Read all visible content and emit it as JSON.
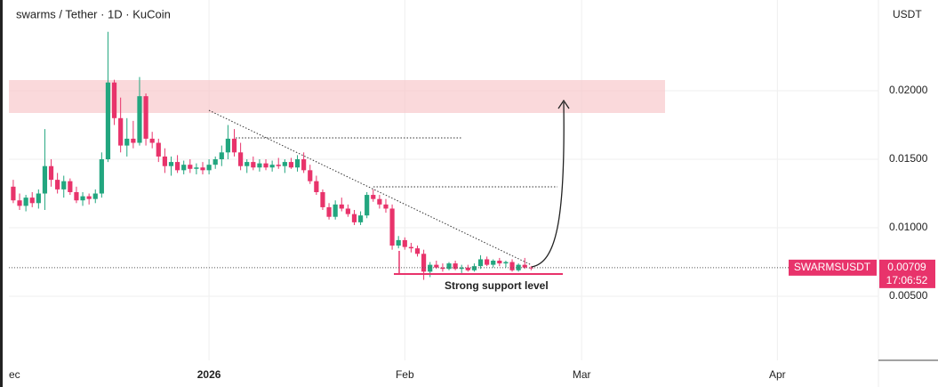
{
  "chart_data": {
    "type": "candlestick",
    "title": "swarms / Tether · 1D · KuCoin",
    "y_axis_label": "USDT",
    "symbol_label": "SWARMSUSDT",
    "last_price": 0.00709,
    "countdown": "17:06:52",
    "annotation": "Strong support level",
    "up_color": "#22a67f",
    "down_color": "#e8336b",
    "grid": true,
    "ylim": [
      0.00033,
      0.02662
    ],
    "yticks": [
      {
        "value": 0.005,
        "label": "0.00500"
      },
      {
        "value": 0.01,
        "label": "0.01000"
      },
      {
        "value": 0.015,
        "label": "0.01500"
      },
      {
        "value": 0.02,
        "label": "0.02000"
      }
    ],
    "xlim": [
      -2.1,
      137
    ],
    "xticks": [
      {
        "value": 0,
        "label": "ec"
      },
      {
        "value": 31,
        "label": "2026"
      },
      {
        "value": 62,
        "label": "Feb"
      },
      {
        "value": 90,
        "label": "Mar"
      },
      {
        "value": 121,
        "label": "Apr"
      }
    ],
    "open": [
      0.013,
      0.012,
      0.0116,
      0.0122,
      0.0118,
      0.0125,
      0.0145,
      0.0135,
      0.0128,
      0.0134,
      0.0126,
      0.012,
      0.0123,
      0.0121,
      0.0125,
      0.015,
      0.0206,
      0.018,
      0.016,
      0.0165,
      0.0162,
      0.0196,
      0.0165,
      0.0162,
      0.0152,
      0.0145,
      0.0148,
      0.0142,
      0.0146,
      0.0143,
      0.0144,
      0.0142,
      0.0146,
      0.015,
      0.0155,
      0.0165,
      0.0155,
      0.0145,
      0.0148,
      0.0144,
      0.0147,
      0.0144,
      0.0146,
      0.0145,
      0.0148,
      0.0144,
      0.015,
      0.0142,
      0.0134,
      0.0126,
      0.0115,
      0.0108,
      0.0117,
      0.0114,
      0.011,
      0.0104,
      0.0109,
      0.0124,
      0.0121,
      0.0117,
      0.0114,
      0.0087,
      0.0091,
      0.0086,
      0.0085,
      0.0081,
      0.0068,
      0.0073,
      0.0071,
      0.007,
      0.0074,
      0.007,
      0.0071,
      0.0069,
      0.0072,
      0.0077,
      0.0073,
      0.0076,
      0.0074,
      0.0075,
      0.0069,
      0.0073,
      0.0071
    ],
    "high": [
      0.0135,
      0.0125,
      0.0124,
      0.0126,
      0.0128,
      0.0172,
      0.015,
      0.014,
      0.0138,
      0.0136,
      0.013,
      0.0126,
      0.0125,
      0.0128,
      0.0155,
      0.0243,
      0.0208,
      0.0195,
      0.018,
      0.0178,
      0.021,
      0.0198,
      0.017,
      0.0165,
      0.0158,
      0.0152,
      0.0153,
      0.0149,
      0.015,
      0.0147,
      0.0148,
      0.015,
      0.0152,
      0.016,
      0.0175,
      0.0172,
      0.0162,
      0.015,
      0.0152,
      0.015,
      0.015,
      0.0149,
      0.0151,
      0.015,
      0.0151,
      0.0153,
      0.0155,
      0.0146,
      0.0138,
      0.0128,
      0.0118,
      0.012,
      0.0122,
      0.0117,
      0.0113,
      0.0112,
      0.0126,
      0.0128,
      0.0124,
      0.0121,
      0.0117,
      0.0094,
      0.0093,
      0.0089,
      0.0087,
      0.0084,
      0.0075,
      0.0076,
      0.0074,
      0.0075,
      0.0076,
      0.0073,
      0.0073,
      0.0074,
      0.008,
      0.0079,
      0.0077,
      0.0078,
      0.0076,
      0.0077,
      0.0074,
      0.0078,
      0.0072
    ],
    "low": [
      0.0118,
      0.0113,
      0.0112,
      0.0115,
      0.0114,
      0.0113,
      0.013,
      0.0125,
      0.0122,
      0.0124,
      0.0118,
      0.0116,
      0.0117,
      0.0118,
      0.0122,
      0.0148,
      0.0175,
      0.0155,
      0.0152,
      0.0158,
      0.016,
      0.016,
      0.0158,
      0.0148,
      0.014,
      0.0138,
      0.014,
      0.0139,
      0.014,
      0.0139,
      0.0139,
      0.0139,
      0.0143,
      0.0145,
      0.015,
      0.0152,
      0.0142,
      0.014,
      0.0142,
      0.0141,
      0.0142,
      0.0141,
      0.0143,
      0.014,
      0.0143,
      0.0141,
      0.014,
      0.0132,
      0.0124,
      0.0113,
      0.0106,
      0.0106,
      0.0112,
      0.0108,
      0.0102,
      0.0102,
      0.0107,
      0.0119,
      0.0114,
      0.0111,
      0.0084,
      0.0085,
      0.0084,
      0.0082,
      0.0079,
      0.0062,
      0.0064,
      0.007,
      0.0068,
      0.0069,
      0.0069,
      0.0067,
      0.0068,
      0.0068,
      0.007,
      0.0072,
      0.0071,
      0.0072,
      0.0071,
      0.0068,
      0.0068,
      0.007,
      0.0069
    ],
    "close": [
      0.012,
      0.0116,
      0.0122,
      0.0118,
      0.0125,
      0.0145,
      0.0135,
      0.0128,
      0.0134,
      0.0126,
      0.012,
      0.0123,
      0.0121,
      0.0125,
      0.015,
      0.0206,
      0.018,
      0.016,
      0.0165,
      0.0162,
      0.0196,
      0.0165,
      0.0162,
      0.0152,
      0.0145,
      0.0148,
      0.0142,
      0.0146,
      0.0143,
      0.0144,
      0.0142,
      0.0146,
      0.015,
      0.0155,
      0.0165,
      0.0155,
      0.0145,
      0.0148,
      0.0144,
      0.0147,
      0.0144,
      0.0146,
      0.0145,
      0.0148,
      0.0144,
      0.015,
      0.0142,
      0.0134,
      0.0126,
      0.0115,
      0.0108,
      0.0117,
      0.0114,
      0.011,
      0.0104,
      0.0109,
      0.0124,
      0.0121,
      0.0117,
      0.0114,
      0.0087,
      0.0091,
      0.0086,
      0.0085,
      0.0081,
      0.0068,
      0.0073,
      0.0071,
      0.007,
      0.0074,
      0.007,
      0.0071,
      0.0069,
      0.0072,
      0.0077,
      0.0073,
      0.0076,
      0.0074,
      0.0075,
      0.0069,
      0.0073,
      0.0071,
      0.00709
    ]
  }
}
